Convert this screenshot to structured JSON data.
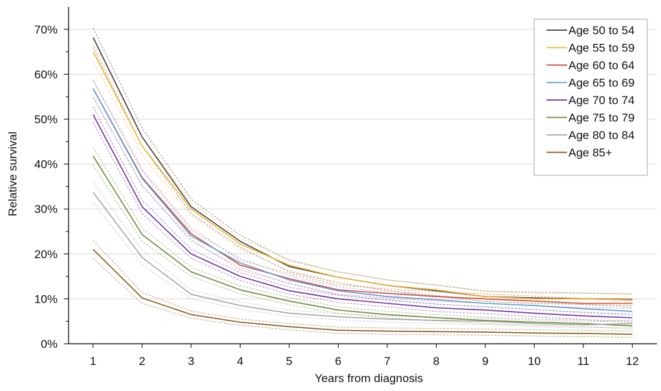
{
  "chart_data": {
    "type": "line",
    "xlabel": "Years from diagnosis",
    "ylabel": "Relative survival",
    "x": [
      1,
      2,
      3,
      4,
      5,
      6,
      7,
      8,
      9,
      10,
      11,
      12
    ],
    "ylim": [
      0,
      0.75
    ],
    "xlim": [
      0.5,
      12.5
    ],
    "yticks": [
      0,
      0.1,
      0.2,
      0.3,
      0.4,
      0.5,
      0.6,
      0.7
    ],
    "ytick_labels": [
      "0%",
      "10%",
      "20%",
      "30%",
      "40%",
      "50%",
      "60%",
      "70%"
    ],
    "xtick_labels": [
      "1",
      "2",
      "3",
      "4",
      "5",
      "6",
      "7",
      "8",
      "9",
      "10",
      "11",
      "12"
    ],
    "grid": "horizontal",
    "legend_position": "top-right",
    "confidence_intervals": "dotted",
    "series": [
      {
        "name": "Age 50 to 54",
        "color": "#404040",
        "values": [
          0.682,
          0.46,
          0.305,
          0.228,
          0.172,
          0.148,
          0.13,
          0.118,
          0.105,
          0.102,
          0.1,
          0.098
        ],
        "lower": [
          0.66,
          0.44,
          0.29,
          0.215,
          0.16,
          0.136,
          0.118,
          0.106,
          0.094,
          0.09,
          0.088,
          0.085
        ],
        "upper": [
          0.703,
          0.48,
          0.322,
          0.242,
          0.185,
          0.16,
          0.142,
          0.13,
          0.117,
          0.115,
          0.113,
          0.111
        ]
      },
      {
        "name": "Age 55 to 59",
        "color": "#F2B632",
        "values": [
          0.65,
          0.44,
          0.3,
          0.222,
          0.175,
          0.148,
          0.13,
          0.12,
          0.105,
          0.1,
          0.1,
          0.097
        ],
        "lower": [
          0.63,
          0.42,
          0.285,
          0.21,
          0.163,
          0.136,
          0.119,
          0.108,
          0.094,
          0.089,
          0.088,
          0.085
        ],
        "upper": [
          0.67,
          0.46,
          0.315,
          0.235,
          0.188,
          0.16,
          0.142,
          0.132,
          0.117,
          0.112,
          0.112,
          0.11
        ]
      },
      {
        "name": "Age 60 to 64",
        "color": "#D94A3C",
        "values": [
          0.568,
          0.37,
          0.245,
          0.175,
          0.145,
          0.12,
          0.112,
          0.105,
          0.1,
          0.095,
          0.09,
          0.09
        ],
        "lower": [
          0.548,
          0.352,
          0.232,
          0.164,
          0.135,
          0.11,
          0.102,
          0.095,
          0.09,
          0.085,
          0.08,
          0.079
        ],
        "upper": [
          0.588,
          0.388,
          0.258,
          0.186,
          0.156,
          0.131,
          0.122,
          0.116,
          0.111,
          0.106,
          0.101,
          0.101
        ]
      },
      {
        "name": "Age 65 to 69",
        "color": "#5B9BD5",
        "values": [
          0.568,
          0.368,
          0.24,
          0.18,
          0.142,
          0.118,
          0.105,
          0.098,
          0.09,
          0.085,
          0.078,
          0.072
        ],
        "lower": [
          0.55,
          0.352,
          0.228,
          0.17,
          0.133,
          0.109,
          0.096,
          0.089,
          0.081,
          0.076,
          0.069,
          0.063
        ],
        "upper": [
          0.586,
          0.384,
          0.252,
          0.19,
          0.151,
          0.127,
          0.114,
          0.107,
          0.099,
          0.094,
          0.087,
          0.081
        ]
      },
      {
        "name": "Age 70 to 74",
        "color": "#7030A0",
        "values": [
          0.51,
          0.305,
          0.2,
          0.15,
          0.118,
          0.1,
          0.09,
          0.08,
          0.075,
          0.068,
          0.062,
          0.058
        ],
        "lower": [
          0.492,
          0.29,
          0.19,
          0.141,
          0.11,
          0.092,
          0.082,
          0.072,
          0.067,
          0.06,
          0.054,
          0.05
        ],
        "upper": [
          0.528,
          0.32,
          0.21,
          0.159,
          0.126,
          0.108,
          0.098,
          0.088,
          0.083,
          0.076,
          0.07,
          0.066
        ]
      },
      {
        "name": "Age 75 to 79",
        "color": "#6E8B3D",
        "values": [
          0.418,
          0.243,
          0.16,
          0.12,
          0.095,
          0.075,
          0.065,
          0.058,
          0.052,
          0.048,
          0.045,
          0.04
        ],
        "lower": [
          0.398,
          0.228,
          0.15,
          0.111,
          0.087,
          0.068,
          0.058,
          0.051,
          0.045,
          0.041,
          0.038,
          0.033
        ],
        "upper": [
          0.438,
          0.258,
          0.17,
          0.129,
          0.103,
          0.082,
          0.072,
          0.065,
          0.059,
          0.055,
          0.052,
          0.047
        ]
      },
      {
        "name": "Age 80 to 84",
        "color": "#A6A6A6",
        "values": [
          0.337,
          0.192,
          0.11,
          0.085,
          0.068,
          0.06,
          0.055,
          0.052,
          0.05,
          0.045,
          0.042,
          0.045
        ],
        "lower": [
          0.315,
          0.176,
          0.1,
          0.077,
          0.061,
          0.053,
          0.048,
          0.045,
          0.043,
          0.038,
          0.035,
          0.037
        ],
        "upper": [
          0.359,
          0.208,
          0.12,
          0.093,
          0.075,
          0.067,
          0.062,
          0.059,
          0.057,
          0.052,
          0.049,
          0.053
        ]
      },
      {
        "name": "Age 85+",
        "color": "#8B5A1E",
        "values": [
          0.21,
          0.102,
          0.065,
          0.048,
          0.038,
          0.03,
          0.028,
          0.027,
          0.026,
          0.024,
          0.023,
          0.021
        ],
        "lower": [
          0.19,
          0.09,
          0.057,
          0.041,
          0.031,
          0.023,
          0.021,
          0.02,
          0.019,
          0.017,
          0.016,
          0.014
        ],
        "upper": [
          0.23,
          0.114,
          0.073,
          0.055,
          0.045,
          0.037,
          0.035,
          0.034,
          0.033,
          0.031,
          0.03,
          0.028
        ]
      }
    ]
  }
}
